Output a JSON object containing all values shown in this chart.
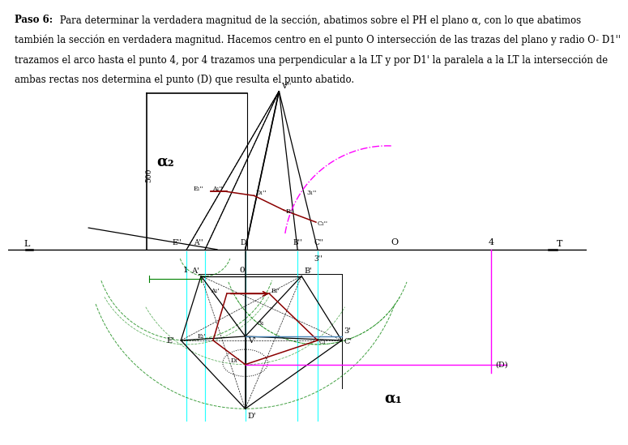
{
  "bg_color": "#ffffff",
  "header_bold": "Paso 6:",
  "header_rest0": " Para determinar la verdadera magnitud de la sección, abatimos sobre el PH el plano α, con lo que abatimos",
  "header_line1": "también la sección en verdadera magnitud. Hacemos centro en el punto O intersección de las trazas del plano y radio O- D1''",
  "header_line2": "trazamos el arco hasta el punto 4, por 4 trazamos una perpendicular a la LT y por D1' la paralela a la LT la intersección de",
  "header_line3": "ambas rectas nos determina el punto (D) que resulta el punto abatido."
}
